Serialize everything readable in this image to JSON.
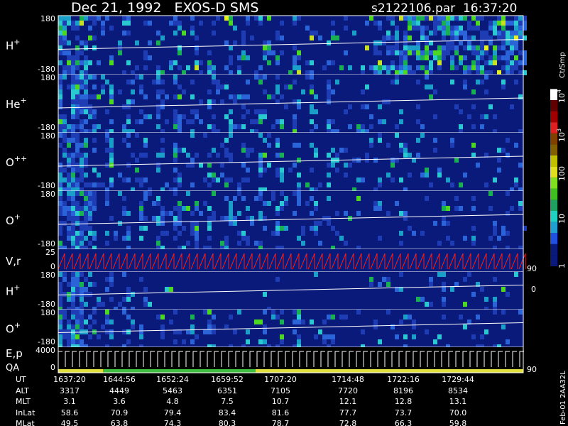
{
  "header": {
    "title": "Dec 21, 1992   EXOS-D SMS",
    "file": "s2122106.par  16:37:20"
  },
  "panels": [
    {
      "label": "H",
      "sup": "+",
      "top": "180",
      "bottom": "-180"
    },
    {
      "label": "He",
      "sup": "+",
      "top": "180",
      "bottom": "-180"
    },
    {
      "label": "O",
      "sup": "++",
      "top": "180",
      "bottom": "-180"
    },
    {
      "label": "O",
      "sup": "+",
      "top": "180",
      "bottom": "-180"
    },
    {
      "label": "V,r",
      "top": "25",
      "bottom": "0",
      "right_top": "90",
      "right_bottom": "0"
    },
    {
      "label": "H",
      "sup": "+",
      "top": "180",
      "bottom": "-180"
    },
    {
      "label": "O",
      "sup": "+",
      "top": "180",
      "bottom": "-180"
    },
    {
      "label": "E,p",
      "label2": "QA",
      "top": "4000",
      "bottom": "0",
      "right_top": "90"
    }
  ],
  "colorbar": {
    "title": "Ct/Smp",
    "ticks": [
      {
        "base": "10",
        "exp": "4"
      },
      {
        "base": "10",
        "exp": "3"
      },
      {
        "base": "100"
      },
      {
        "base": "10"
      },
      {
        "base": "1"
      }
    ]
  },
  "table": {
    "rows": [
      {
        "label": "UT",
        "values": [
          "1637:20",
          "1644:56",
          "1652:24",
          "1659:52",
          "1707:20",
          "1714:48",
          "1722:16",
          "1729:44"
        ]
      },
      {
        "label": "ALT",
        "values": [
          "3317",
          "4449",
          "5463",
          "6351",
          "7105",
          "7720",
          "8196",
          "8534"
        ]
      },
      {
        "label": "MLT",
        "values": [
          "3.1",
          "3.6",
          "4.8",
          "7.5",
          "10.7",
          "12.1",
          "12.8",
          "13.1"
        ]
      },
      {
        "label": "InLat",
        "values": [
          "58.6",
          "70.9",
          "79.4",
          "83.4",
          "81.6",
          "77.7",
          "73.7",
          "70.0"
        ]
      },
      {
        "label": "MLat",
        "values": [
          "49.5",
          "63.8",
          "74.3",
          "80.3",
          "78.7",
          "72.8",
          "66.3",
          "59.8"
        ]
      }
    ]
  },
  "side": "Feb-01 2AA32L"
}
